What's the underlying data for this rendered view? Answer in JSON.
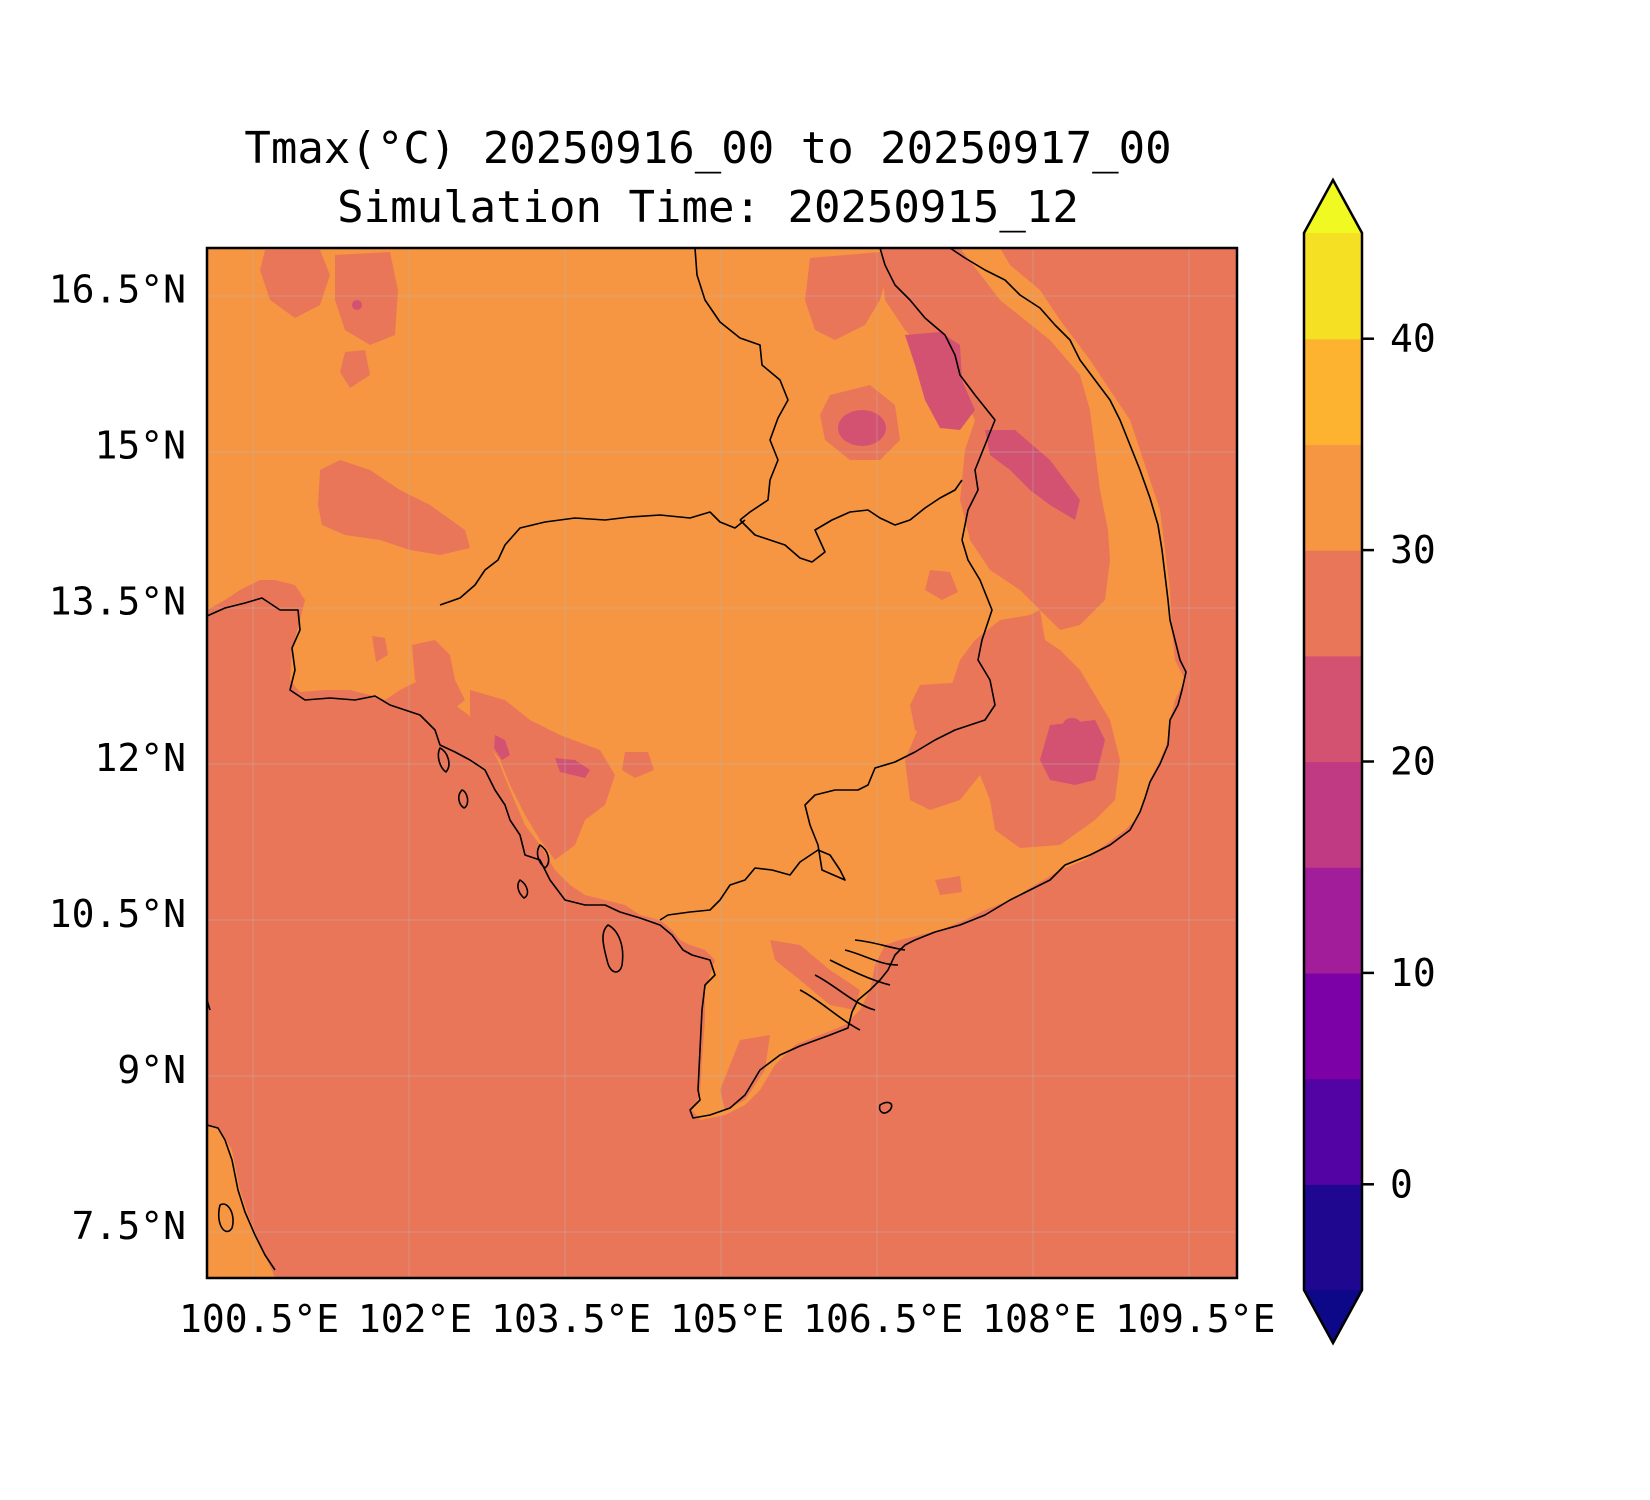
{
  "title": {
    "line1": "Tmax(°C) 20250916_00 to 20250917_00",
    "line2": "Simulation Time: 20250915_12"
  },
  "map": {
    "lon_range": [
      100.0,
      109.9
    ],
    "lat_range": [
      7.0,
      16.9
    ],
    "x_ticks": [
      {
        "value": 100.5,
        "label": "100.5°E"
      },
      {
        "value": 102.0,
        "label": "102°E"
      },
      {
        "value": 103.5,
        "label": "103.5°E"
      },
      {
        "value": 105.0,
        "label": "105°E"
      },
      {
        "value": 106.5,
        "label": "106.5°E"
      },
      {
        "value": 108.0,
        "label": "108°E"
      },
      {
        "value": 109.5,
        "label": "109.5°E"
      }
    ],
    "y_ticks": [
      {
        "value": 16.5,
        "label": "16.5°N"
      },
      {
        "value": 15.0,
        "label": "15°N"
      },
      {
        "value": 13.5,
        "label": "13.5°N"
      },
      {
        "value": 12.0,
        "label": "12°N"
      },
      {
        "value": 10.5,
        "label": "10.5°N"
      },
      {
        "value": 9.0,
        "label": "9°N"
      },
      {
        "value": 7.5,
        "label": "7.5°N"
      }
    ],
    "background_level_color": "#ea765a",
    "land_level_color": "#f69642",
    "cool_patch_color": "#d35272",
    "grid": true
  },
  "colorbar": {
    "levels": [
      -5,
      0,
      5,
      10,
      15,
      20,
      25,
      30,
      35,
      40,
      45
    ],
    "colors": [
      "#20078f",
      "#5302a3",
      "#7c02a8",
      "#a21d9a",
      "#c03a83",
      "#d35272",
      "#ea765a",
      "#f69642",
      "#fdb32f",
      "#f5e024"
    ],
    "under_color": "#0d0887",
    "over_color": "#f0f921",
    "extend": "both",
    "ticks": [
      {
        "value": 0,
        "label": "0"
      },
      {
        "value": 10,
        "label": "10"
      },
      {
        "value": 20,
        "label": "20"
      },
      {
        "value": 30,
        "label": "30"
      },
      {
        "value": 40,
        "label": "40"
      }
    ]
  }
}
